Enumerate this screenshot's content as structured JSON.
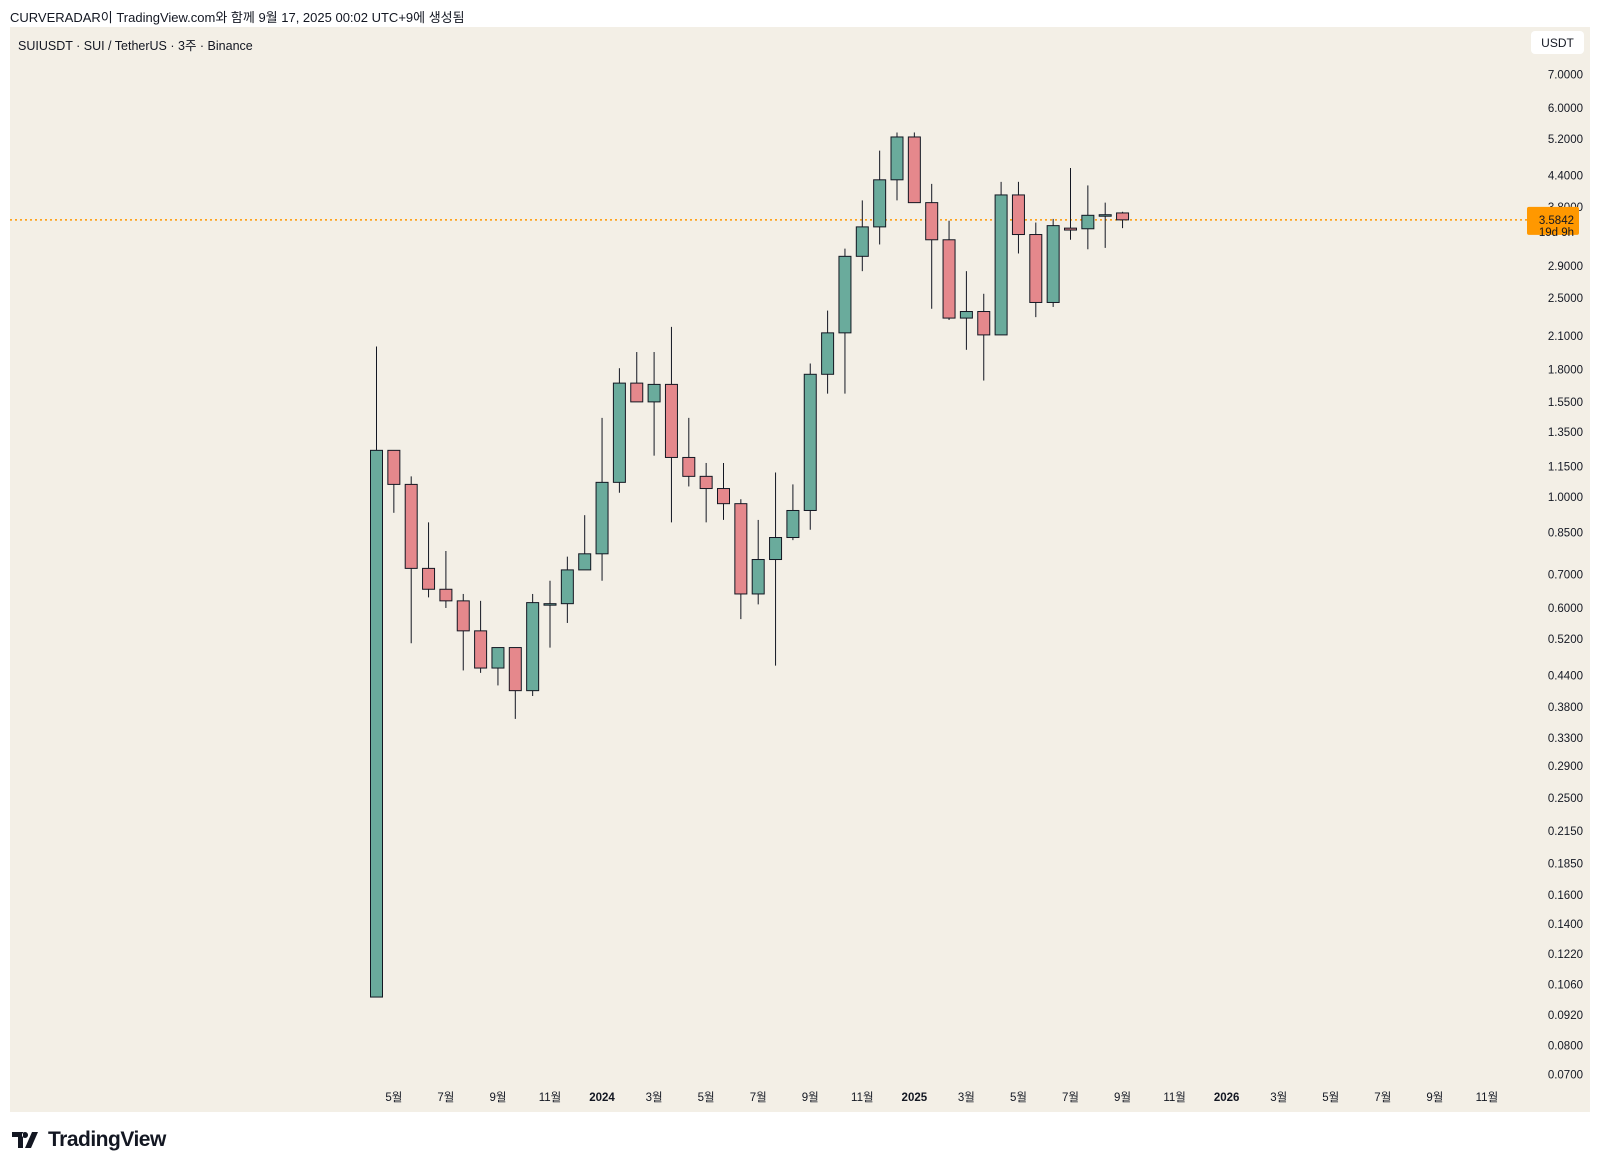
{
  "caption": "CURVERADAR이 TradingView.com와 함께 9월 17, 2025 00:02 UTC+9에 생성됨",
  "symbol_title": "SUIUSDT · SUI / TetherUS · 3주 · Binance",
  "currency_button": "USDT",
  "logo_text": "TradingView",
  "colors": {
    "up": "#6aab9c",
    "down": "#e5888c",
    "price_line": "#ff9800",
    "background": "#f3efe6"
  },
  "chart_data": {
    "type": "candlestick",
    "scale": "log",
    "interval": "3W",
    "ylim": [
      0.066,
      7.6
    ],
    "current_price": {
      "value": "3.5842",
      "countdown": "19d 9h",
      "price": 3.5842
    },
    "y_ticks": [
      "7.0000",
      "6.0000",
      "5.2000",
      "4.4000",
      "3.8000",
      "2.9000",
      "2.5000",
      "2.1000",
      "1.8000",
      "1.5500",
      "1.3500",
      "1.1500",
      "1.0000",
      "0.8500",
      "0.7000",
      "0.6000",
      "0.5200",
      "0.4400",
      "0.3800",
      "0.3300",
      "0.2900",
      "0.2500",
      "0.2150",
      "0.1850",
      "0.1600",
      "0.1400",
      "0.1220",
      "0.1060",
      "0.0920",
      "0.0800",
      "0.0700"
    ],
    "x_ticks": [
      {
        "label": "5월",
        "bar": 1,
        "bold": false
      },
      {
        "label": "7월",
        "bar": 4,
        "bold": false
      },
      {
        "label": "9월",
        "bar": 7,
        "bold": false
      },
      {
        "label": "11월",
        "bar": 10,
        "bold": false
      },
      {
        "label": "2024",
        "bar": 13,
        "bold": true
      },
      {
        "label": "3월",
        "bar": 16,
        "bold": false
      },
      {
        "label": "5월",
        "bar": 19,
        "bold": false
      },
      {
        "label": "7월",
        "bar": 22,
        "bold": false
      },
      {
        "label": "9월",
        "bar": 25,
        "bold": false
      },
      {
        "label": "11월",
        "bar": 28,
        "bold": false
      },
      {
        "label": "2025",
        "bar": 31,
        "bold": true
      },
      {
        "label": "3월",
        "bar": 34,
        "bold": false
      },
      {
        "label": "5월",
        "bar": 37,
        "bold": false
      },
      {
        "label": "7월",
        "bar": 40,
        "bold": false
      },
      {
        "label": "9월",
        "bar": 43,
        "bold": false
      },
      {
        "label": "11월",
        "bar": 46,
        "bold": false
      },
      {
        "label": "2026",
        "bar": 49,
        "bold": true
      },
      {
        "label": "3월",
        "bar": 52,
        "bold": false
      },
      {
        "label": "5월",
        "bar": 55,
        "bold": false
      },
      {
        "label": "7월",
        "bar": 58,
        "bold": false
      },
      {
        "label": "9월",
        "bar": 61,
        "bold": false
      },
      {
        "label": "11월",
        "bar": 64,
        "bold": false
      }
    ],
    "candles": [
      [
        0.1,
        2.0,
        0.1,
        1.24
      ],
      [
        1.24,
        1.24,
        0.93,
        1.06
      ],
      [
        1.06,
        1.1,
        0.51,
        0.72
      ],
      [
        0.72,
        0.89,
        0.63,
        0.654
      ],
      [
        0.654,
        0.78,
        0.6,
        0.62
      ],
      [
        0.62,
        0.64,
        0.45,
        0.54
      ],
      [
        0.54,
        0.62,
        0.445,
        0.455
      ],
      [
        0.455,
        0.5,
        0.42,
        0.5
      ],
      [
        0.5,
        0.5,
        0.36,
        0.41
      ],
      [
        0.41,
        0.64,
        0.4,
        0.615
      ],
      [
        0.61,
        0.68,
        0.5,
        0.612
      ],
      [
        0.612,
        0.76,
        0.56,
        0.715
      ],
      [
        0.715,
        0.92,
        0.715,
        0.77
      ],
      [
        0.77,
        1.44,
        0.68,
        1.07
      ],
      [
        1.07,
        1.81,
        1.02,
        1.69
      ],
      [
        1.69,
        1.95,
        1.55,
        1.55
      ],
      [
        1.55,
        1.95,
        1.21,
        1.68
      ],
      [
        1.68,
        2.19,
        0.89,
        1.2
      ],
      [
        1.2,
        1.44,
        1.05,
        1.1
      ],
      [
        1.1,
        1.17,
        0.89,
        1.04
      ],
      [
        1.04,
        1.17,
        0.9,
        0.97
      ],
      [
        0.97,
        0.99,
        0.57,
        0.64
      ],
      [
        0.64,
        0.9,
        0.61,
        0.75
      ],
      [
        0.75,
        1.12,
        0.46,
        0.83
      ],
      [
        0.83,
        1.06,
        0.82,
        0.94
      ],
      [
        0.94,
        1.85,
        0.86,
        1.76
      ],
      [
        1.76,
        2.36,
        1.61,
        2.13
      ],
      [
        2.13,
        3.14,
        1.61,
        3.03
      ],
      [
        3.03,
        3.92,
        2.83,
        3.47
      ],
      [
        3.47,
        4.93,
        3.2,
        4.31
      ],
      [
        4.31,
        5.36,
        3.92,
        5.25
      ],
      [
        5.25,
        5.36,
        3.88,
        3.88
      ],
      [
        3.88,
        4.23,
        2.38,
        3.27
      ],
      [
        3.27,
        3.57,
        2.26,
        2.28
      ],
      [
        2.28,
        2.83,
        1.97,
        2.35
      ],
      [
        2.35,
        2.55,
        1.71,
        2.11
      ],
      [
        2.11,
        4.27,
        2.11,
        4.02
      ],
      [
        4.02,
        4.27,
        3.07,
        3.35
      ],
      [
        3.35,
        3.54,
        2.29,
        2.45
      ],
      [
        2.45,
        3.6,
        2.4,
        3.49
      ],
      [
        3.45,
        4.55,
        3.27,
        3.42
      ],
      [
        3.44,
        4.2,
        3.13,
        3.66
      ],
      [
        3.66,
        3.88,
        3.15,
        3.67
      ],
      [
        3.7,
        3.72,
        3.45,
        3.5842
      ]
    ]
  }
}
